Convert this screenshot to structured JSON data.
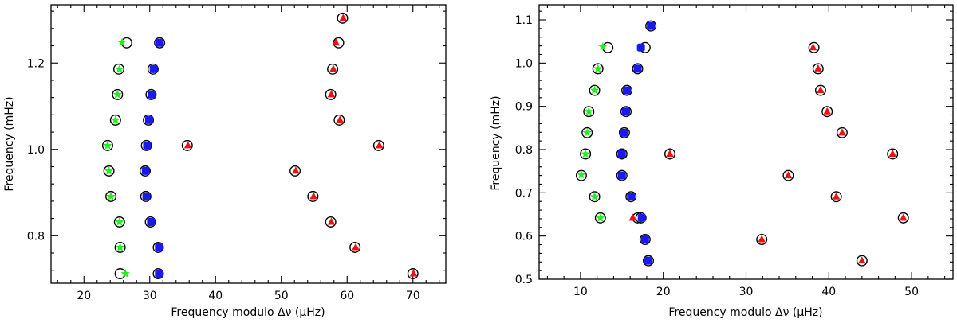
{
  "chart_data": [
    {
      "type": "scatter",
      "xlabel": "Frequency modulo Δν (μHz)",
      "ylabel": "Frequency (mHz)",
      "xlim": [
        15,
        75
      ],
      "ylim": [
        0.69,
        1.335
      ],
      "xticks": [
        20,
        30,
        40,
        50,
        60,
        70
      ],
      "yticks": [
        0.8,
        1.0,
        1.2
      ],
      "x_tick_labels": [
        "20",
        "30",
        "40",
        "50",
        "60",
        "70"
      ],
      "y_tick_labels": [
        "0.8",
        "1.0",
        "1.2"
      ],
      "grid": false,
      "series": [
        {
          "marker": "open-circle",
          "points": [
            [
              26.5,
              1.247
            ],
            [
              31.5,
              1.247
            ],
            [
              58.7,
              1.247
            ],
            [
              59.3,
              1.304
            ],
            [
              25.3,
              1.186
            ],
            [
              30.5,
              1.186
            ],
            [
              57.8,
              1.186
            ],
            [
              25.1,
              1.127
            ],
            [
              30.2,
              1.127
            ],
            [
              57.5,
              1.127
            ],
            [
              24.8,
              1.068
            ],
            [
              29.8,
              1.068
            ],
            [
              58.8,
              1.068
            ],
            [
              23.6,
              1.009
            ],
            [
              29.5,
              1.009
            ],
            [
              35.7,
              1.009
            ],
            [
              64.8,
              1.009
            ],
            [
              23.8,
              0.95
            ],
            [
              29.3,
              0.95
            ],
            [
              52.1,
              0.95
            ],
            [
              24.1,
              0.891
            ],
            [
              29.4,
              0.891
            ],
            [
              54.8,
              0.891
            ],
            [
              25.4,
              0.832
            ],
            [
              30.1,
              0.832
            ],
            [
              57.5,
              0.832
            ],
            [
              25.5,
              0.773
            ],
            [
              31.3,
              0.773
            ],
            [
              61.2,
              0.773
            ],
            [
              25.5,
              0.712
            ],
            [
              31.3,
              0.712
            ],
            [
              70.0,
              0.712
            ]
          ]
        },
        {
          "marker": "green-star",
          "color": "#22ee22",
          "points": [
            [
              25.8,
              1.248
            ],
            [
              25.4,
              1.186
            ],
            [
              25.1,
              1.127
            ],
            [
              24.8,
              1.068
            ],
            [
              23.6,
              1.009
            ],
            [
              23.8,
              0.95
            ],
            [
              24.1,
              0.891
            ],
            [
              25.4,
              0.832
            ],
            [
              25.5,
              0.773
            ],
            [
              26.3,
              0.712
            ]
          ]
        },
        {
          "marker": "blue-square",
          "color": "#1a1aee",
          "points": [
            [
              31.5,
              1.247
            ],
            [
              30.6,
              1.186
            ],
            [
              30.3,
              1.127
            ],
            [
              29.9,
              1.068
            ],
            [
              29.6,
              1.009
            ],
            [
              29.4,
              0.95
            ],
            [
              29.5,
              0.891
            ],
            [
              30.2,
              0.832
            ],
            [
              31.4,
              0.773
            ],
            [
              31.4,
              0.712
            ]
          ]
        },
        {
          "marker": "red-triangle",
          "color": "#ee1111",
          "points": [
            [
              59.4,
              1.304
            ],
            [
              58.3,
              1.247
            ],
            [
              57.9,
              1.186
            ],
            [
              57.6,
              1.127
            ],
            [
              58.9,
              1.068
            ],
            [
              35.8,
              1.009
            ],
            [
              64.9,
              1.009
            ],
            [
              52.2,
              0.95
            ],
            [
              54.9,
              0.891
            ],
            [
              57.6,
              0.832
            ],
            [
              61.3,
              0.773
            ],
            [
              70.1,
              0.712
            ]
          ]
        }
      ]
    },
    {
      "type": "scatter",
      "xlabel": "Frequency modulo Δν (μHz)",
      "ylabel": "Frequency (mHz)",
      "xlim": [
        5,
        55
      ],
      "ylim": [
        0.5,
        1.135
      ],
      "xticks": [
        10,
        20,
        30,
        40,
        50
      ],
      "yticks": [
        0.5,
        0.6,
        0.7,
        0.8,
        0.9,
        1.0,
        1.1
      ],
      "x_tick_labels": [
        "10",
        "20",
        "30",
        "40",
        "50"
      ],
      "y_tick_labels": [
        "0.5",
        "0.6",
        "0.7",
        "0.8",
        "0.9",
        "1.0",
        "1.1"
      ],
      "grid": false,
      "series": [
        {
          "marker": "open-circle",
          "points": [
            [
              18.5,
              1.086
            ],
            [
              13.3,
              1.036
            ],
            [
              17.8,
              1.036
            ],
            [
              38.2,
              1.036
            ],
            [
              12.1,
              0.987
            ],
            [
              16.9,
              0.987
            ],
            [
              38.7,
              0.987
            ],
            [
              11.7,
              0.937
            ],
            [
              15.6,
              0.937
            ],
            [
              39.0,
              0.937
            ],
            [
              11.0,
              0.888
            ],
            [
              15.5,
              0.888
            ],
            [
              39.8,
              0.888
            ],
            [
              10.8,
              0.839
            ],
            [
              15.3,
              0.839
            ],
            [
              41.6,
              0.839
            ],
            [
              10.6,
              0.79
            ],
            [
              15.0,
              0.79
            ],
            [
              20.8,
              0.79
            ],
            [
              47.7,
              0.79
            ],
            [
              10.1,
              0.74
            ],
            [
              15.0,
              0.74
            ],
            [
              35.1,
              0.74
            ],
            [
              11.7,
              0.691
            ],
            [
              16.1,
              0.691
            ],
            [
              40.9,
              0.691
            ],
            [
              12.4,
              0.642
            ],
            [
              16.9,
              0.642
            ],
            [
              17.3,
              0.642
            ],
            [
              49.0,
              0.642
            ],
            [
              17.8,
              0.592
            ],
            [
              31.9,
              0.592
            ],
            [
              18.2,
              0.543
            ],
            [
              44.0,
              0.543
            ]
          ]
        },
        {
          "marker": "green-star",
          "color": "#22ee22",
          "points": [
            [
              12.7,
              1.038
            ],
            [
              12.1,
              0.987
            ],
            [
              11.7,
              0.937
            ],
            [
              11.0,
              0.888
            ],
            [
              10.8,
              0.839
            ],
            [
              10.6,
              0.79
            ],
            [
              10.1,
              0.742
            ],
            [
              11.7,
              0.691
            ],
            [
              12.4,
              0.642
            ]
          ]
        },
        {
          "marker": "blue-square",
          "color": "#1a1aee",
          "points": [
            [
              18.5,
              1.086
            ],
            [
              17.3,
              1.036
            ],
            [
              16.9,
              0.987
            ],
            [
              15.6,
              0.937
            ],
            [
              15.5,
              0.888
            ],
            [
              15.3,
              0.839
            ],
            [
              15.0,
              0.79
            ],
            [
              15.0,
              0.74
            ],
            [
              16.1,
              0.691
            ],
            [
              17.4,
              0.642
            ],
            [
              17.8,
              0.592
            ],
            [
              18.2,
              0.543
            ]
          ]
        },
        {
          "marker": "red-triangle",
          "color": "#ee1111",
          "points": [
            [
              38.1,
              1.036
            ],
            [
              38.7,
              0.987
            ],
            [
              39.0,
              0.937
            ],
            [
              39.8,
              0.888
            ],
            [
              41.6,
              0.839
            ],
            [
              20.8,
              0.79
            ],
            [
              47.7,
              0.79
            ],
            [
              35.1,
              0.74
            ],
            [
              40.9,
              0.691
            ],
            [
              16.3,
              0.642
            ],
            [
              49.0,
              0.642
            ],
            [
              31.9,
              0.592
            ],
            [
              44.0,
              0.543
            ]
          ]
        }
      ]
    }
  ]
}
